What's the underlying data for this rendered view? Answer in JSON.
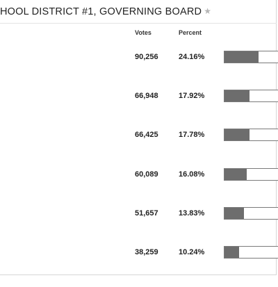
{
  "header": {
    "title": "HOOL DISTRICT #1, GOVERNING BOARD",
    "star_icon": "star-icon"
  },
  "columns": {
    "votes": "Votes",
    "percent": "Percent"
  },
  "colors": {
    "bar_fill": "#6d6d6d",
    "bar_border": "#7a7a7a",
    "star": "#b5b5b5"
  },
  "results": [
    {
      "votes": "90,256",
      "percent": "24.16%",
      "share": 0.2416
    },
    {
      "votes": "66,948",
      "percent": "17.92%",
      "share": 0.1792
    },
    {
      "votes": "66,425",
      "percent": "17.78%",
      "share": 0.1778
    },
    {
      "votes": "60,089",
      "percent": "16.08%",
      "share": 0.1608
    },
    {
      "votes": "51,657",
      "percent": "13.83%",
      "share": 0.1383
    },
    {
      "votes": "38,259",
      "percent": "10.24%",
      "share": 0.1024
    }
  ]
}
